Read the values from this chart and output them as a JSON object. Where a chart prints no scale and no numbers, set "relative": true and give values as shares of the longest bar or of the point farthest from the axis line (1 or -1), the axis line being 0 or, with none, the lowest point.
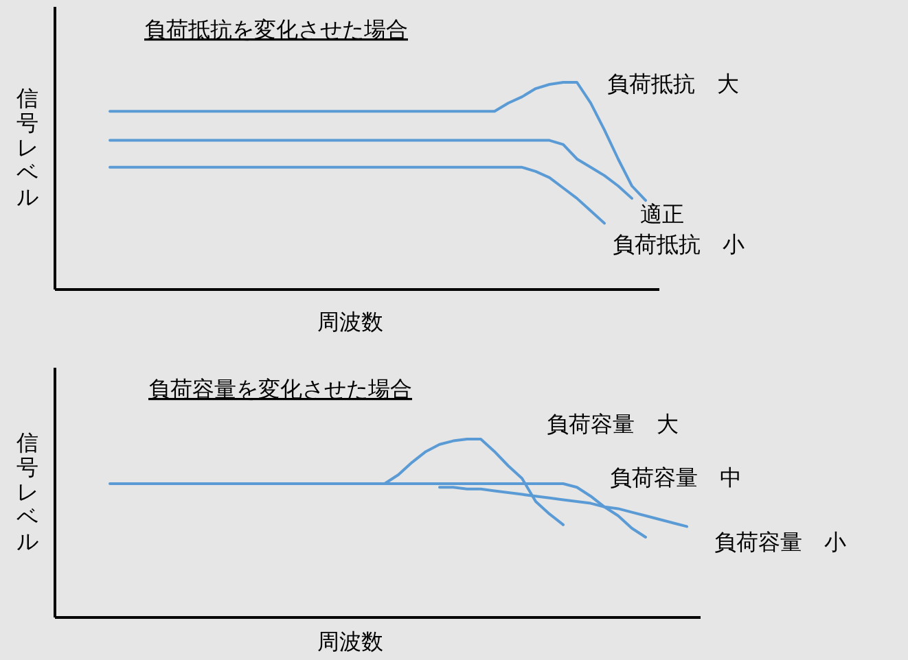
{
  "chart_data": [
    {
      "type": "line",
      "relative": true,
      "title": "負荷抵抗を変化させた場合",
      "xlabel": "周波数",
      "ylabel": "信号レベル",
      "categories": [
        null,
        null,
        null,
        null,
        null,
        null,
        null,
        null,
        null,
        null,
        null,
        null,
        null,
        null,
        null,
        null,
        null,
        null,
        null,
        null,
        null,
        null,
        null,
        null,
        null,
        null,
        null,
        null,
        null,
        null,
        null,
        null,
        null,
        null,
        null,
        null,
        null,
        null,
        null,
        null,
        null,
        null,
        null,
        null,
        null
      ],
      "series": [
        {
          "name": "負荷抵抗　大",
          "color": "#5b9bd5",
          "values": [
            null,
            null,
            null,
            null,
            0.86,
            0.86,
            0.86,
            0.86,
            0.86,
            0.86,
            0.86,
            0.86,
            0.86,
            0.86,
            0.86,
            0.86,
            0.86,
            0.86,
            0.86,
            0.86,
            0.86,
            0.86,
            0.86,
            0.86,
            0.86,
            0.86,
            0.86,
            0.86,
            0.86,
            0.86,
            0.86,
            0.86,
            0.86,
            0.9,
            0.93,
            0.97,
            0.99,
            1,
            1,
            0.9,
            0.77,
            0.63,
            0.5,
            0.43,
            null
          ]
        },
        {
          "name": "適正",
          "color": "#5b9bd5",
          "values": [
            null,
            null,
            null,
            null,
            0.72,
            0.72,
            0.72,
            0.72,
            0.72,
            0.72,
            0.72,
            0.72,
            0.72,
            0.72,
            0.72,
            0.72,
            0.72,
            0.72,
            0.72,
            0.72,
            0.72,
            0.72,
            0.72,
            0.72,
            0.72,
            0.72,
            0.72,
            0.72,
            0.72,
            0.72,
            0.72,
            0.72,
            0.72,
            0.72,
            0.72,
            0.72,
            0.72,
            0.7,
            0.63,
            0.59,
            0.55,
            0.5,
            0.44,
            null,
            null
          ]
        },
        {
          "name": "負荷抵抗　小",
          "color": "#5b9bd5",
          "values": [
            null,
            null,
            null,
            null,
            0.59,
            0.59,
            0.59,
            0.59,
            0.59,
            0.59,
            0.59,
            0.59,
            0.59,
            0.59,
            0.59,
            0.59,
            0.59,
            0.59,
            0.59,
            0.59,
            0.59,
            0.59,
            0.59,
            0.59,
            0.59,
            0.59,
            0.59,
            0.59,
            0.59,
            0.59,
            0.59,
            0.59,
            0.59,
            0.59,
            0.59,
            0.57,
            0.54,
            0.49,
            0.44,
            0.38,
            0.32,
            null,
            null,
            null,
            null
          ]
        }
      ]
    },
    {
      "type": "line",
      "relative": true,
      "title": "負荷容量を変化させた場合",
      "xlabel": "周波数",
      "ylabel": "信号レベル",
      "categories": [
        null,
        null,
        null,
        null,
        null,
        null,
        null,
        null,
        null,
        null,
        null,
        null,
        null,
        null,
        null,
        null,
        null,
        null,
        null,
        null,
        null,
        null,
        null,
        null,
        null,
        null,
        null,
        null,
        null,
        null,
        null,
        null,
        null,
        null,
        null,
        null,
        null,
        null,
        null,
        null,
        null,
        null,
        null,
        null,
        null,
        null,
        null,
        null
      ],
      "series": [
        {
          "name": "負荷容量　大",
          "color": "#5b9bd5",
          "values": [
            null,
            null,
            null,
            null,
            0.75,
            0.75,
            0.75,
            0.75,
            0.75,
            0.75,
            0.75,
            0.75,
            0.75,
            0.75,
            0.75,
            0.75,
            0.75,
            0.75,
            0.75,
            0.75,
            0.75,
            0.75,
            0.75,
            0.75,
            0.75,
            0.8,
            0.87,
            0.93,
            0.97,
            0.99,
            1,
            1,
            0.93,
            0.85,
            0.78,
            0.65,
            0.58,
            0.52,
            null,
            null,
            null,
            null,
            null,
            null,
            null,
            null,
            null,
            null
          ]
        },
        {
          "name": "負荷容量　中",
          "color": "#5b9bd5",
          "values": [
            null,
            null,
            null,
            null,
            null,
            null,
            null,
            null,
            null,
            null,
            null,
            null,
            null,
            null,
            null,
            null,
            null,
            null,
            null,
            null,
            null,
            null,
            null,
            null,
            0.75,
            0.75,
            0.75,
            0.75,
            0.75,
            0.75,
            0.75,
            0.75,
            0.75,
            0.75,
            0.75,
            0.75,
            0.75,
            0.75,
            0.73,
            0.68,
            0.62,
            0.57,
            0.5,
            0.45,
            null,
            null,
            null,
            null
          ]
        },
        {
          "name": "負荷容量　小",
          "color": "#5b9bd5",
          "values": [
            null,
            null,
            null,
            null,
            null,
            null,
            null,
            null,
            null,
            null,
            null,
            null,
            null,
            null,
            null,
            null,
            null,
            null,
            null,
            null,
            null,
            null,
            null,
            null,
            null,
            null,
            null,
            null,
            0.73,
            0.73,
            0.72,
            0.72,
            0.71,
            0.7,
            0.69,
            0.68,
            0.67,
            0.66,
            0.65,
            0.64,
            0.62,
            0.61,
            0.59,
            0.57,
            0.55,
            0.53,
            0.51,
            null
          ]
        }
      ]
    }
  ]
}
